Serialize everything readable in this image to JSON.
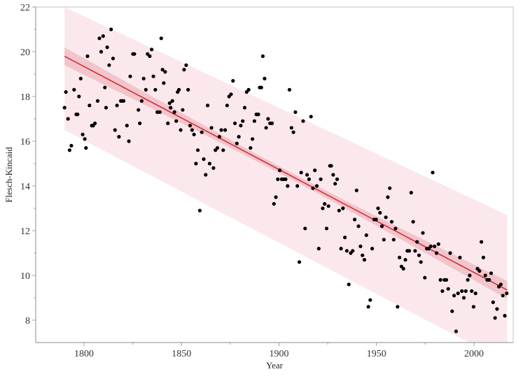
{
  "chart_data": {
    "type": "scatter",
    "title": "",
    "xlabel": "Year",
    "ylabel": "Flesch-Kincaid",
    "xlim": [
      1775,
      2020
    ],
    "ylim": [
      7,
      22
    ],
    "x_ticks": [
      1800,
      1850,
      1900,
      1950,
      2000
    ],
    "x_minor_ticks": [
      1825,
      1875,
      1925,
      1975
    ],
    "y_ticks": [
      8,
      10,
      12,
      14,
      16,
      18,
      20,
      22
    ],
    "y_minor_ticks": [
      9,
      11,
      13,
      15,
      17,
      19,
      21
    ],
    "grid": false,
    "legend": null,
    "colors": {
      "points": "#000000",
      "fit_line": "#d0303a",
      "confidence_band": "#f2c4cb",
      "prediction_band": "#fbe8ec",
      "axis": "#a0a0a0",
      "frame": "#c0c0c0"
    },
    "fit": {
      "type": "linear",
      "x_range": [
        1790,
        2017
      ],
      "line": [
        [
          1790,
          19.8
        ],
        [
          2017,
          9.35
        ]
      ],
      "confidence_halfwidth_edge": 0.4,
      "confidence_halfwidth_center": 0.15,
      "prediction_upper": [
        [
          1790,
          22.0
        ],
        [
          2017,
          12.7
        ]
      ],
      "prediction_lower": [
        [
          1790,
          16.5
        ],
        [
          2017,
          6.1
        ]
      ]
    },
    "points": [
      [
        1790.0,
        17.5
      ],
      [
        1790.7,
        18.2
      ],
      [
        1791.8,
        17.0
      ],
      [
        1792.6,
        15.6
      ],
      [
        1793.5,
        15.8
      ],
      [
        1794.9,
        18.3
      ],
      [
        1796.0,
        17.2
      ],
      [
        1796.7,
        17.2
      ],
      [
        1797.4,
        18.0
      ],
      [
        1798.3,
        18.8
      ],
      [
        1799.3,
        16.3
      ],
      [
        1800.4,
        16.1
      ],
      [
        1801.0,
        15.7
      ],
      [
        1801.8,
        19.8
      ],
      [
        1802.8,
        17.6
      ],
      [
        1804.0,
        16.7
      ],
      [
        1804.7,
        16.7
      ],
      [
        1805.6,
        16.8
      ],
      [
        1807.0,
        17.8
      ],
      [
        1807.9,
        20.6
      ],
      [
        1808.8,
        20.0
      ],
      [
        1809.8,
        20.7
      ],
      [
        1810.7,
        18.4
      ],
      [
        1811.3,
        17.5
      ],
      [
        1811.9,
        20.2
      ],
      [
        1812.9,
        19.4
      ],
      [
        1813.9,
        21.0
      ],
      [
        1814.9,
        19.7
      ],
      [
        1815.9,
        16.5
      ],
      [
        1816.9,
        17.6
      ],
      [
        1817.9,
        16.2
      ],
      [
        1818.9,
        17.8
      ],
      [
        1819.6,
        17.8
      ],
      [
        1820.3,
        17.8
      ],
      [
        1822.0,
        16.7
      ],
      [
        1823.0,
        16.0
      ],
      [
        1823.7,
        18.9
      ],
      [
        1825.1,
        19.9
      ],
      [
        1825.8,
        19.9
      ],
      [
        1827.9,
        17.4
      ],
      [
        1828.6,
        16.8
      ],
      [
        1829.6,
        17.8
      ],
      [
        1830.6,
        18.8
      ],
      [
        1831.7,
        18.3
      ],
      [
        1832.6,
        19.9
      ],
      [
        1833.7,
        19.8
      ],
      [
        1834.7,
        20.1
      ],
      [
        1835.6,
        18.9
      ],
      [
        1836.6,
        18.3
      ],
      [
        1837.6,
        17.3
      ],
      [
        1838.9,
        17.3
      ],
      [
        1839.6,
        20.6
      ],
      [
        1840.3,
        19.2
      ],
      [
        1840.9,
        18.6
      ],
      [
        1841.6,
        19.1
      ],
      [
        1843.0,
        16.8
      ],
      [
        1843.9,
        17.7
      ],
      [
        1844.4,
        17.5
      ],
      [
        1845.3,
        17.8
      ],
      [
        1846.4,
        17.3
      ],
      [
        1847.3,
        16.9
      ],
      [
        1848.0,
        18.2
      ],
      [
        1848.7,
        18.3
      ],
      [
        1849.6,
        16.5
      ],
      [
        1850.6,
        17.4
      ],
      [
        1851.3,
        19.2
      ],
      [
        1852.4,
        19.4
      ],
      [
        1853.4,
        18.3
      ],
      [
        1854.4,
        16.7
      ],
      [
        1855.4,
        16.5
      ],
      [
        1856.4,
        16.3
      ],
      [
        1857.4,
        15.0
      ],
      [
        1858.4,
        15.6
      ],
      [
        1859.4,
        12.9
      ],
      [
        1860.4,
        16.4
      ],
      [
        1861.4,
        15.2
      ],
      [
        1862.4,
        14.5
      ],
      [
        1863.4,
        17.6
      ],
      [
        1864.4,
        15.0
      ],
      [
        1865.4,
        16.6
      ],
      [
        1866.4,
        14.8
      ],
      [
        1867.4,
        15.6
      ],
      [
        1868.4,
        15.7
      ],
      [
        1869.4,
        16.2
      ],
      [
        1870.4,
        16.5
      ],
      [
        1871.4,
        15.6
      ],
      [
        1872.4,
        16.5
      ],
      [
        1873.4,
        17.6
      ],
      [
        1874.4,
        18.0
      ],
      [
        1875.4,
        18.1
      ],
      [
        1876.4,
        18.7
      ],
      [
        1877.4,
        16.8
      ],
      [
        1878.4,
        15.9
      ],
      [
        1879.4,
        16.2
      ],
      [
        1880.4,
        16.7
      ],
      [
        1881.4,
        16.9
      ],
      [
        1882.4,
        17.5
      ],
      [
        1883.4,
        18.2
      ],
      [
        1884.4,
        18.3
      ],
      [
        1885.4,
        15.7
      ],
      [
        1886.4,
        16.1
      ],
      [
        1887.4,
        16.9
      ],
      [
        1888.4,
        17.2
      ],
      [
        1889.4,
        17.2
      ],
      [
        1890.1,
        18.4
      ],
      [
        1890.9,
        18.4
      ],
      [
        1891.7,
        19.8
      ],
      [
        1892.6,
        18.8
      ],
      [
        1893.4,
        16.6
      ],
      [
        1894.4,
        17.0
      ],
      [
        1895.4,
        16.8
      ],
      [
        1896.4,
        16.8
      ],
      [
        1897.4,
        13.2
      ],
      [
        1898.4,
        13.5
      ],
      [
        1899.4,
        14.3
      ],
      [
        1900.4,
        14.7
      ],
      [
        1901.4,
        14.3
      ],
      [
        1902.4,
        14.3
      ],
      [
        1903.4,
        14.3
      ],
      [
        1904.4,
        14.0
      ],
      [
        1905.4,
        18.3
      ],
      [
        1906.4,
        16.6
      ],
      [
        1907.4,
        16.4
      ],
      [
        1908.4,
        17.3
      ],
      [
        1909.4,
        14.0
      ],
      [
        1910.4,
        10.6
      ],
      [
        1911.4,
        14.6
      ],
      [
        1912.4,
        16.9
      ],
      [
        1913.4,
        12.1
      ],
      [
        1914.4,
        14.5
      ],
      [
        1915.4,
        14.3
      ],
      [
        1916.4,
        17.1
      ],
      [
        1917.4,
        13.9
      ],
      [
        1918.4,
        14.7
      ],
      [
        1919.4,
        14.0
      ],
      [
        1920.4,
        11.2
      ],
      [
        1921.4,
        14.3
      ],
      [
        1922.4,
        13.0
      ],
      [
        1923.4,
        13.2
      ],
      [
        1924.4,
        12.1
      ],
      [
        1925.4,
        13.1
      ],
      [
        1926.1,
        14.9
      ],
      [
        1926.8,
        14.9
      ],
      [
        1927.8,
        14.5
      ],
      [
        1928.8,
        14.1
      ],
      [
        1929.8,
        14.3
      ],
      [
        1930.8,
        12.9
      ],
      [
        1931.8,
        11.2
      ],
      [
        1932.8,
        13.0
      ],
      [
        1933.8,
        11.7
      ],
      [
        1934.8,
        11.1
      ],
      [
        1935.8,
        9.6
      ],
      [
        1936.8,
        11.0
      ],
      [
        1937.8,
        11.1
      ],
      [
        1938.8,
        12.5
      ],
      [
        1939.8,
        13.8
      ],
      [
        1940.8,
        12.2
      ],
      [
        1941.8,
        11.3
      ],
      [
        1942.8,
        10.9
      ],
      [
        1943.8,
        10.7
      ],
      [
        1944.8,
        11.8
      ],
      [
        1945.8,
        8.6
      ],
      [
        1946.8,
        8.9
      ],
      [
        1947.8,
        11.2
      ],
      [
        1948.8,
        12.5
      ],
      [
        1949.8,
        12.5
      ],
      [
        1950.8,
        13.0
      ],
      [
        1951.8,
        12.8
      ],
      [
        1952.8,
        12.2
      ],
      [
        1953.8,
        11.6
      ],
      [
        1954.8,
        12.6
      ],
      [
        1955.8,
        13.5
      ],
      [
        1956.8,
        13.9
      ],
      [
        1957.8,
        12.4
      ],
      [
        1958.8,
        11.6
      ],
      [
        1959.8,
        12.1
      ],
      [
        1960.8,
        8.6
      ],
      [
        1961.8,
        10.8
      ],
      [
        1962.8,
        10.4
      ],
      [
        1963.8,
        10.3
      ],
      [
        1964.8,
        10.7
      ],
      [
        1965.8,
        11.1
      ],
      [
        1966.8,
        11.1
      ],
      [
        1967.8,
        13.7
      ],
      [
        1968.8,
        12.4
      ],
      [
        1969.8,
        11.1
      ],
      [
        1970.8,
        11.5
      ],
      [
        1971.8,
        10.9
      ],
      [
        1972.8,
        10.6
      ],
      [
        1973.8,
        11.9
      ],
      [
        1974.8,
        9.9
      ],
      [
        1975.8,
        11.2
      ],
      [
        1976.8,
        11.2
      ],
      [
        1977.8,
        11.3
      ],
      [
        1978.8,
        14.6
      ],
      [
        1979.8,
        11.3
      ],
      [
        1980.8,
        11.0
      ],
      [
        1981.8,
        11.4
      ],
      [
        1982.8,
        9.8
      ],
      [
        1983.8,
        9.3
      ],
      [
        1984.8,
        9.8
      ],
      [
        1985.8,
        9.8
      ],
      [
        1986.8,
        9.4
      ],
      [
        1987.8,
        11.0
      ],
      [
        1988.8,
        8.4
      ],
      [
        1989.8,
        9.1
      ],
      [
        1990.8,
        7.5
      ],
      [
        1991.8,
        9.2
      ],
      [
        1992.8,
        10.8
      ],
      [
        1993.8,
        9.3
      ],
      [
        1994.8,
        9.0
      ],
      [
        1995.8,
        9.3
      ],
      [
        1996.8,
        9.8
      ],
      [
        1997.8,
        10.0
      ],
      [
        1998.8,
        9.3
      ],
      [
        1999.8,
        8.6
      ],
      [
        2000.8,
        9.2
      ],
      [
        2001.8,
        10.3
      ],
      [
        2002.8,
        10.2
      ],
      [
        2003.8,
        11.5
      ],
      [
        2004.8,
        10.8
      ],
      [
        2005.8,
        10.0
      ],
      [
        2006.8,
        9.8
      ],
      [
        2007.8,
        9.8
      ],
      [
        2008.8,
        10.1
      ],
      [
        2009.8,
        8.8
      ],
      [
        2010.8,
        8.1
      ],
      [
        2011.8,
        8.5
      ],
      [
        2012.8,
        9.5
      ],
      [
        2013.8,
        9.6
      ],
      [
        2014.8,
        9.1
      ],
      [
        2015.8,
        8.2
      ],
      [
        2016.8,
        9.2
      ]
    ]
  }
}
